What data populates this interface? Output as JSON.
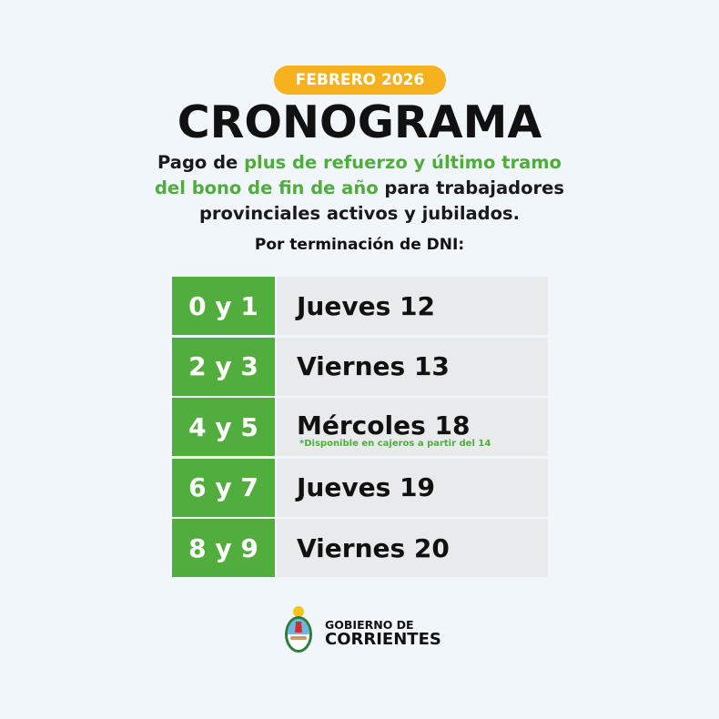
{
  "badge": "FEBRERO 2026",
  "title": "CRONOGRAMA",
  "subtitle": {
    "p1": "Pago de ",
    "g1": "plus de refuerzo y último tramo",
    "g2": "del bono de fin de año",
    "p2": " para trabajadores",
    "p3": "provinciales activos y jubilados."
  },
  "dni_label": "Por terminación de DNI:",
  "schedule": [
    {
      "digits": "0 y 1",
      "day": "Jueves 12"
    },
    {
      "digits": "2 y 3",
      "day": "Viernes 13"
    },
    {
      "digits": "4 y 5",
      "day": "Mércoles 18",
      "note": "*Disponible en cajeros a partir del 14"
    },
    {
      "digits": "6 y 7",
      "day": "Jueves 19"
    },
    {
      "digits": "8 y 9",
      "day": "Viernes 20"
    }
  ],
  "footer": {
    "line1": "GOBIERNO DE",
    "line2": "CORRIENTES",
    "icon": "provincial-coat-of-arms"
  },
  "colors": {
    "green": "#52ae3c",
    "orange": "#f6b21c",
    "background": "#f1f6fb"
  }
}
